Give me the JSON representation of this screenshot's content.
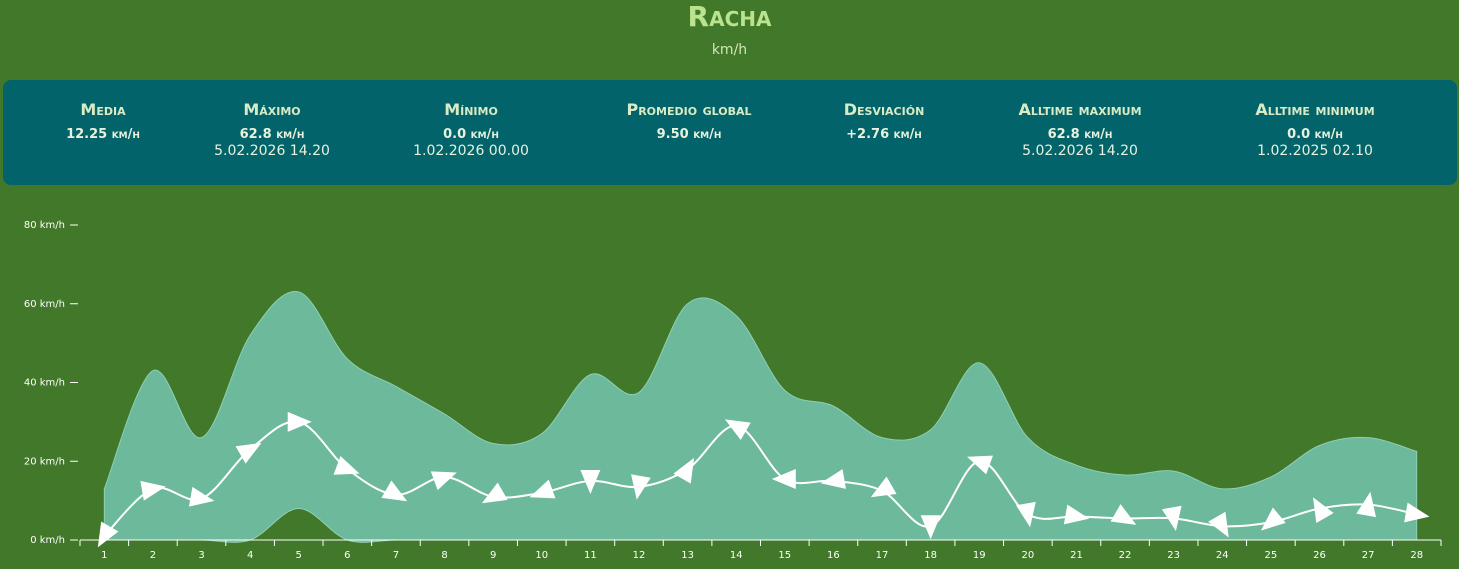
{
  "header": {
    "title": "Racha",
    "subtitle": "km/h"
  },
  "stats": [
    {
      "label": "Media",
      "value": "12.25 km/h"
    },
    {
      "label": "Máximo",
      "value": "62.8 km/h",
      "date": "5.02.2026 14.20"
    },
    {
      "label": "Mínimo",
      "value": "0.0 km/h",
      "date": "1.02.2026 00.00"
    },
    {
      "label": "Promedio global",
      "value": "9.50 km/h"
    },
    {
      "label": "Desviación",
      "value": "+2.76 km/h"
    },
    {
      "label": "Alltime maximum",
      "value": "62.8 km/h",
      "date": "5.02.2026 14.20"
    },
    {
      "label": "Alltime minimum",
      "value": "0.0 km/h",
      "date": "1.02.2025 02.10"
    }
  ],
  "chart_data": {
    "type": "arearange",
    "categories": [
      "1",
      "2",
      "3",
      "4",
      "5",
      "6",
      "7",
      "8",
      "9",
      "10",
      "11",
      "12",
      "13",
      "14",
      "15",
      "16",
      "17",
      "18",
      "19",
      "20",
      "21",
      "22",
      "23",
      "24",
      "25",
      "26",
      "27",
      "28"
    ],
    "ylim": [
      0,
      80
    ],
    "yticks": [
      {
        "value": 0,
        "label": "0 km/h"
      },
      {
        "value": 20,
        "label": "20 km/h"
      },
      {
        "value": 40,
        "label": "40 km/h"
      },
      {
        "value": 60,
        "label": "60 km/h"
      },
      {
        "value": 80,
        "label": "80 km/h"
      }
    ],
    "range": {
      "color": "#6cb99c",
      "high": [
        13,
        43,
        26,
        52,
        63,
        46,
        39,
        32,
        24.5,
        27,
        42,
        37.5,
        60,
        57,
        38,
        34,
        26,
        28,
        45,
        26,
        19,
        16.5,
        17.5,
        13,
        16,
        24,
        26,
        22.5
      ],
      "low": [
        0,
        0,
        0,
        0,
        8,
        0,
        0,
        0,
        0,
        0,
        0,
        0,
        0,
        0,
        0,
        0,
        0,
        0,
        0,
        0,
        0,
        0,
        0,
        0,
        0,
        0,
        0,
        0
      ]
    },
    "line": {
      "color": "#ffffff",
      "values": [
        1,
        13,
        10.5,
        23,
        30,
        18,
        11.5,
        16,
        11,
        12,
        15,
        13.5,
        18,
        29,
        15.5,
        15,
        12.5,
        3.5,
        20,
        6.5,
        6,
        5.5,
        5.5,
        3.5,
        4.5,
        8,
        9,
        6.5
      ],
      "directions": [
        210,
        80,
        100,
        60,
        90,
        110,
        120,
        70,
        240,
        250,
        180,
        190,
        30,
        300,
        270,
        260,
        240,
        180,
        290,
        170,
        100,
        120,
        170,
        150,
        230,
        330,
        10,
        100
      ]
    }
  }
}
